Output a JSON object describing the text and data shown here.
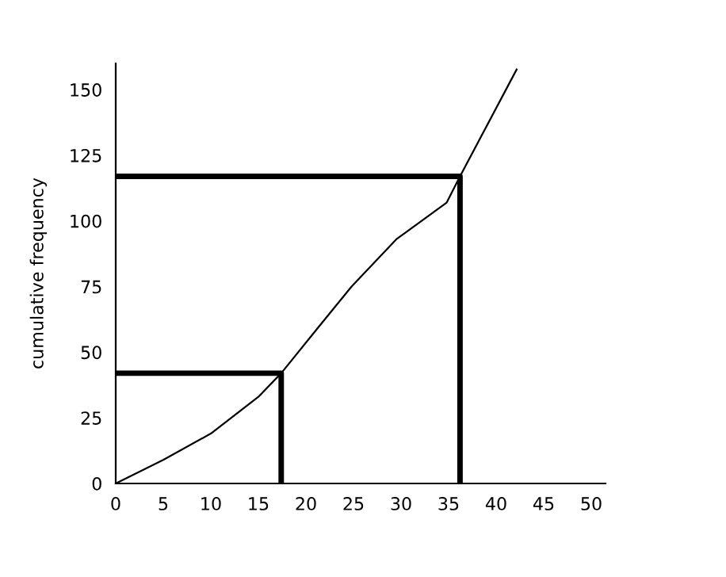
{
  "chart_data": {
    "type": "line",
    "ylabel": "cumulative frequency",
    "xlim": [
      0,
      51.5
    ],
    "ylim": [
      0,
      160
    ],
    "xticks": [
      0,
      5,
      10,
      15,
      20,
      25,
      30,
      35,
      40,
      45,
      50
    ],
    "yticks": [
      0,
      25,
      50,
      75,
      100,
      125,
      150
    ],
    "grid": false,
    "legend": false,
    "marker": "none",
    "line_style": "solid",
    "series": [
      {
        "color": "#000000",
        "x": [
          0,
          5,
          10,
          15,
          17.4,
          21.2,
          24.8,
          29.5,
          34.8,
          36.2,
          42.2
        ],
        "values": [
          0,
          9,
          19,
          33,
          42,
          59,
          75,
          93,
          107,
          117,
          158
        ]
      },
      {
        "color": "#000000",
        "x": [
          0,
          17.4,
          17.4
        ],
        "values": [
          42,
          42,
          0
        ]
      },
      {
        "color": "#000000",
        "x": [
          0,
          36.2,
          36.2
        ],
        "values": [
          117,
          117,
          0
        ]
      }
    ]
  }
}
